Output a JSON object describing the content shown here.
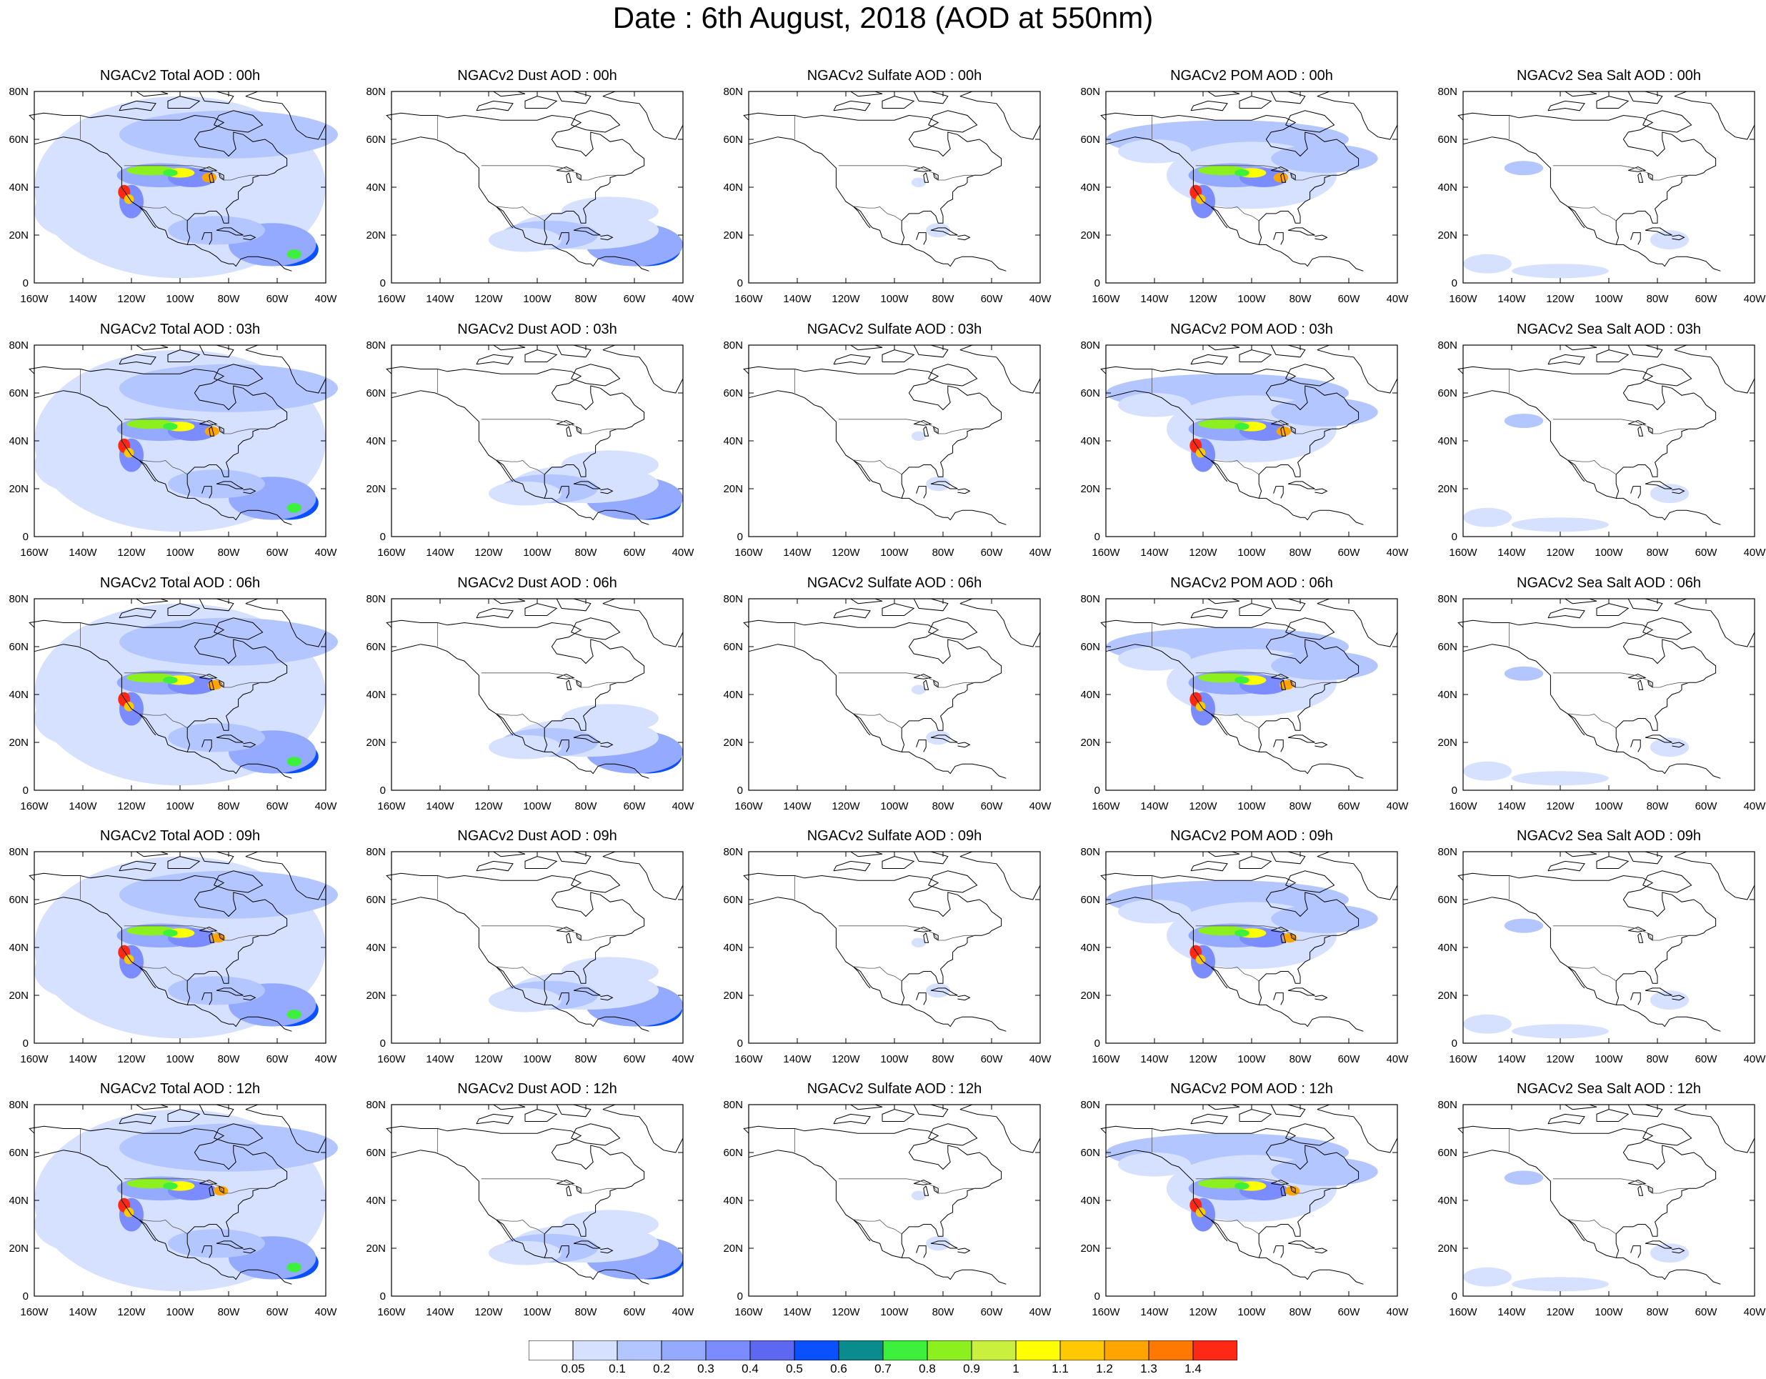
{
  "title": "Date : 6th August, 2018 (AOD at 550nm)",
  "map_axes": {
    "x_ticks": [
      "160W",
      "140W",
      "120W",
      "100W",
      "80W",
      "60W",
      "40W"
    ],
    "y_ticks": [
      "0",
      "20N",
      "40N",
      "60N",
      "80N"
    ],
    "lon_range": [
      -160,
      -40
    ],
    "lat_range": [
      0,
      80
    ]
  },
  "columns": [
    {
      "variable": "Total",
      "base": "#c8d6ff",
      "scale": 1.0,
      "hotspots": true
    },
    {
      "variable": "Dust",
      "base": "#d2dcff",
      "scale": 0.75,
      "hotspots": false
    },
    {
      "variable": "Sulfate",
      "base": "#dce4ff",
      "scale": 0.1,
      "hotspots": false
    },
    {
      "variable": "POM",
      "base": "#c8d6ff",
      "scale": 0.8,
      "hotspots": true
    },
    {
      "variable": "Sea Salt",
      "base": "#d8e0ff",
      "scale": 0.25,
      "hotspots": false
    }
  ],
  "panels": [
    [
      "NGACv2 Total AOD : 00h",
      "NGACv2 Dust AOD : 00h",
      "NGACv2 Sulfate AOD : 00h",
      "NGACv2 POM AOD : 00h",
      "NGACv2 Sea Salt AOD : 00h"
    ],
    [
      "NGACv2 Total AOD : 03h",
      "NGACv2 Dust AOD : 03h",
      "NGACv2 Sulfate AOD : 03h",
      "NGACv2 POM AOD : 03h",
      "NGACv2 Sea Salt AOD : 03h"
    ],
    [
      "NGACv2 Total AOD : 06h",
      "NGACv2 Dust AOD : 06h",
      "NGACv2 Sulfate AOD : 06h",
      "NGACv2 POM AOD : 06h",
      "NGACv2 Sea Salt AOD : 06h"
    ],
    [
      "NGACv2 Total AOD : 09h",
      "NGACv2 Dust AOD : 09h",
      "NGACv2 Sulfate AOD : 09h",
      "NGACv2 POM AOD : 09h",
      "NGACv2 Sea Salt  AOD : 09h"
    ],
    [
      "NGACv2 Total AOD  : 12h",
      "NGACv2 Dust AOD : 12h",
      "NGACv2 Sulfate AOD : 12h",
      "NGACv2 POM  AOD : 12h",
      "NGACv2 Sea Salt  AOD : 12h"
    ]
  ],
  "colorbar": {
    "colors": [
      "#ffffff",
      "#d6e0ff",
      "#b4c6ff",
      "#94aaff",
      "#7a8cff",
      "#5c68f0",
      "#0a50ff",
      "#0a8c8c",
      "#3cf03c",
      "#8cf01e",
      "#c8f03c",
      "#ffff00",
      "#ffc800",
      "#ffa500",
      "#ff7800",
      "#ff2814"
    ],
    "labels": [
      "0.05",
      "0.1",
      "0.2",
      "0.3",
      "0.4",
      "0.5",
      "0.6",
      "0.7",
      "0.8",
      "0.9",
      "1",
      "1.1",
      "1.2",
      "1.3",
      "1.4"
    ]
  }
}
